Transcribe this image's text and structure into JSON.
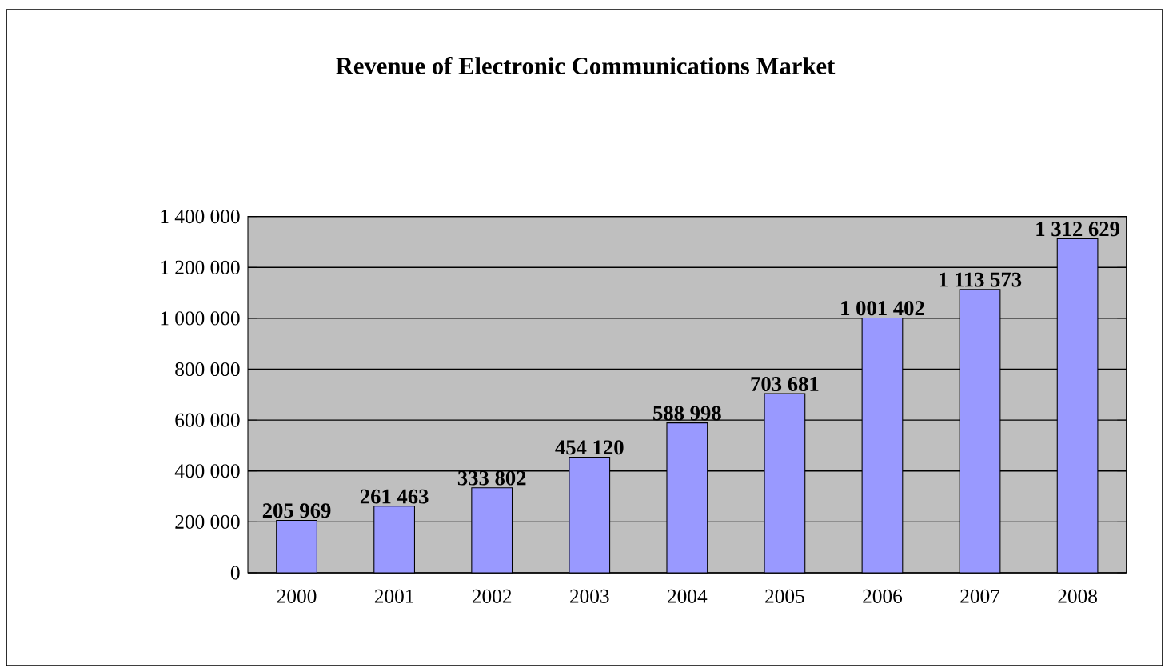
{
  "chart_data": {
    "type": "bar",
    "title": "Revenue of Electronic Communications Market",
    "categories": [
      "2000",
      "2001",
      "2002",
      "2003",
      "2004",
      "2005",
      "2006",
      "2007",
      "2008"
    ],
    "values": [
      205969,
      261463,
      333802,
      454120,
      588998,
      703681,
      1001402,
      1113573,
      1312629
    ],
    "value_labels": [
      "205 969",
      "261 463",
      "333 802",
      "454 120",
      "588 998",
      "703 681",
      "1 001 402",
      "1 113 573",
      "1 312 629"
    ],
    "color": "#9999ff",
    "ylim": [
      0,
      1400000
    ],
    "yticks": [
      0,
      {
        "value": 200000,
        "label": "200 000"
      },
      {
        "value": 400000,
        "label": "400 000"
      },
      {
        "value": 600000,
        "label": "600 000"
      },
      {
        "value": 800000,
        "label": "800 000"
      },
      {
        "value": 1000000,
        "label": "1 000 000"
      },
      {
        "value": 1200000,
        "label": "1 200 000"
      },
      {
        "value": 1400000,
        "label": "1 400 000"
      }
    ],
    "grid": "y"
  }
}
